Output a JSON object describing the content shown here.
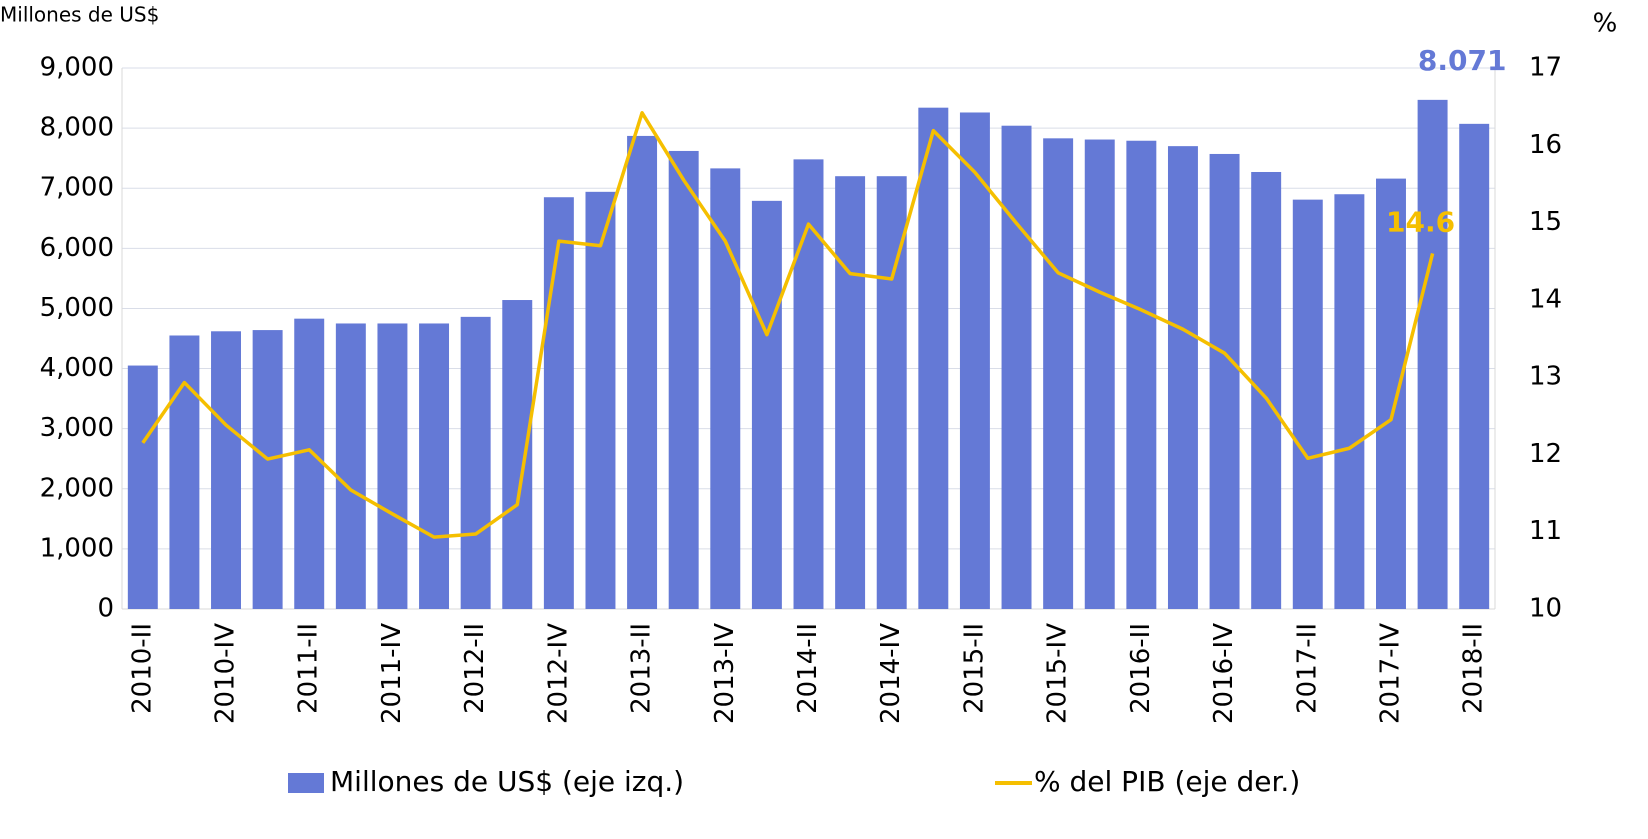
{
  "chart_data": {
    "type": "bar_line",
    "y_label": "Millones de US$",
    "y2_label": "%",
    "categories": [
      "2010-II",
      null,
      "2010-IV",
      null,
      "2011-II",
      null,
      "2011-IV",
      null,
      "2012-II",
      null,
      "2012-IV",
      null,
      "2013-II",
      null,
      "2013-IV",
      null,
      "2014-II",
      null,
      "2014-IV",
      null,
      "2015-II",
      null,
      "2015-IV",
      null,
      "2016-II",
      null,
      "2016-IV",
      null,
      "2017-II",
      null,
      "2017-IV",
      null,
      "2018-II"
    ],
    "series": [
      {
        "name": "Millones de US$ (eje izq.)",
        "color": "#6479d6",
        "type": "bar",
        "values": [
          4050,
          4550,
          4620,
          4640,
          4830,
          4750,
          4750,
          4750,
          4860,
          5140,
          6850,
          6940,
          7870,
          7620,
          7330,
          6790,
          7480,
          7200,
          7200,
          8340,
          8260,
          8040,
          7830,
          7810,
          7790,
          7700,
          7570,
          7270,
          6810,
          6900,
          7160,
          8470,
          8071
        ],
        "value_labels": [
          null,
          null,
          null,
          null,
          null,
          null,
          null,
          null,
          null,
          null,
          null,
          null,
          null,
          null,
          null,
          null,
          null,
          null,
          null,
          null,
          null,
          null,
          null,
          null,
          null,
          null,
          null,
          null,
          null,
          null,
          null,
          null,
          "8.071"
        ]
      },
      {
        "name": "% del PIB (eje der.)",
        "color": "#f5bf00",
        "type": "line",
        "axis": "y2",
        "values": [
          12.15,
          12.93,
          12.38,
          11.94,
          12.06,
          11.54,
          11.23,
          10.93,
          10.97,
          11.35,
          14.76,
          14.7,
          16.42,
          15.55,
          14.76,
          13.55,
          14.98,
          14.34,
          14.27,
          16.19,
          15.65,
          14.99,
          14.35,
          14.1,
          13.87,
          13.62,
          13.31,
          12.73,
          11.95,
          12.08,
          12.45,
          14.6,
          null
        ],
        "value_labels": [
          null,
          null,
          null,
          null,
          null,
          null,
          null,
          null,
          null,
          null,
          null,
          null,
          null,
          null,
          null,
          null,
          null,
          null,
          null,
          null,
          null,
          null,
          null,
          null,
          null,
          null,
          null,
          null,
          null,
          null,
          null,
          "14.6",
          null
        ]
      }
    ],
    "ylim": [
      0,
      9000
    ],
    "yticks": [
      0,
      {
        "value": 1000,
        "label": "1,000"
      },
      {
        "value": 2000,
        "label": "2,000"
      },
      {
        "value": 3000,
        "label": "3,000"
      },
      {
        "value": 4000,
        "label": "4,000"
      },
      {
        "value": 5000,
        "label": "5,000"
      },
      {
        "value": 6000,
        "label": "6,000"
      },
      {
        "value": 7000,
        "label": "7,000"
      },
      {
        "value": 8000,
        "label": "8,000"
      },
      {
        "value": 9000,
        "label": "9,000"
      }
    ],
    "y2lim": [
      10,
      17
    ],
    "y2ticks": [
      10,
      11,
      12,
      13,
      14,
      15,
      16,
      17
    ],
    "grid": true,
    "legend": "bottom"
  }
}
